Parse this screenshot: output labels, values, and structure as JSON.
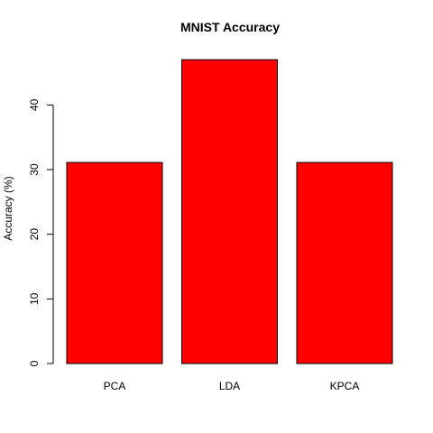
{
  "chart_data": {
    "type": "bar",
    "title": "MNIST Accuracy",
    "xlabel": "",
    "ylabel": "Accuracy (%)",
    "categories": [
      "PCA",
      "LDA",
      "KPCA"
    ],
    "values": [
      31.1,
      47.0,
      31.1
    ],
    "ylim": [
      0,
      48
    ],
    "yticks": [
      0,
      10,
      20,
      30,
      40
    ],
    "bar_color": "#ff0000",
    "grid": false
  }
}
